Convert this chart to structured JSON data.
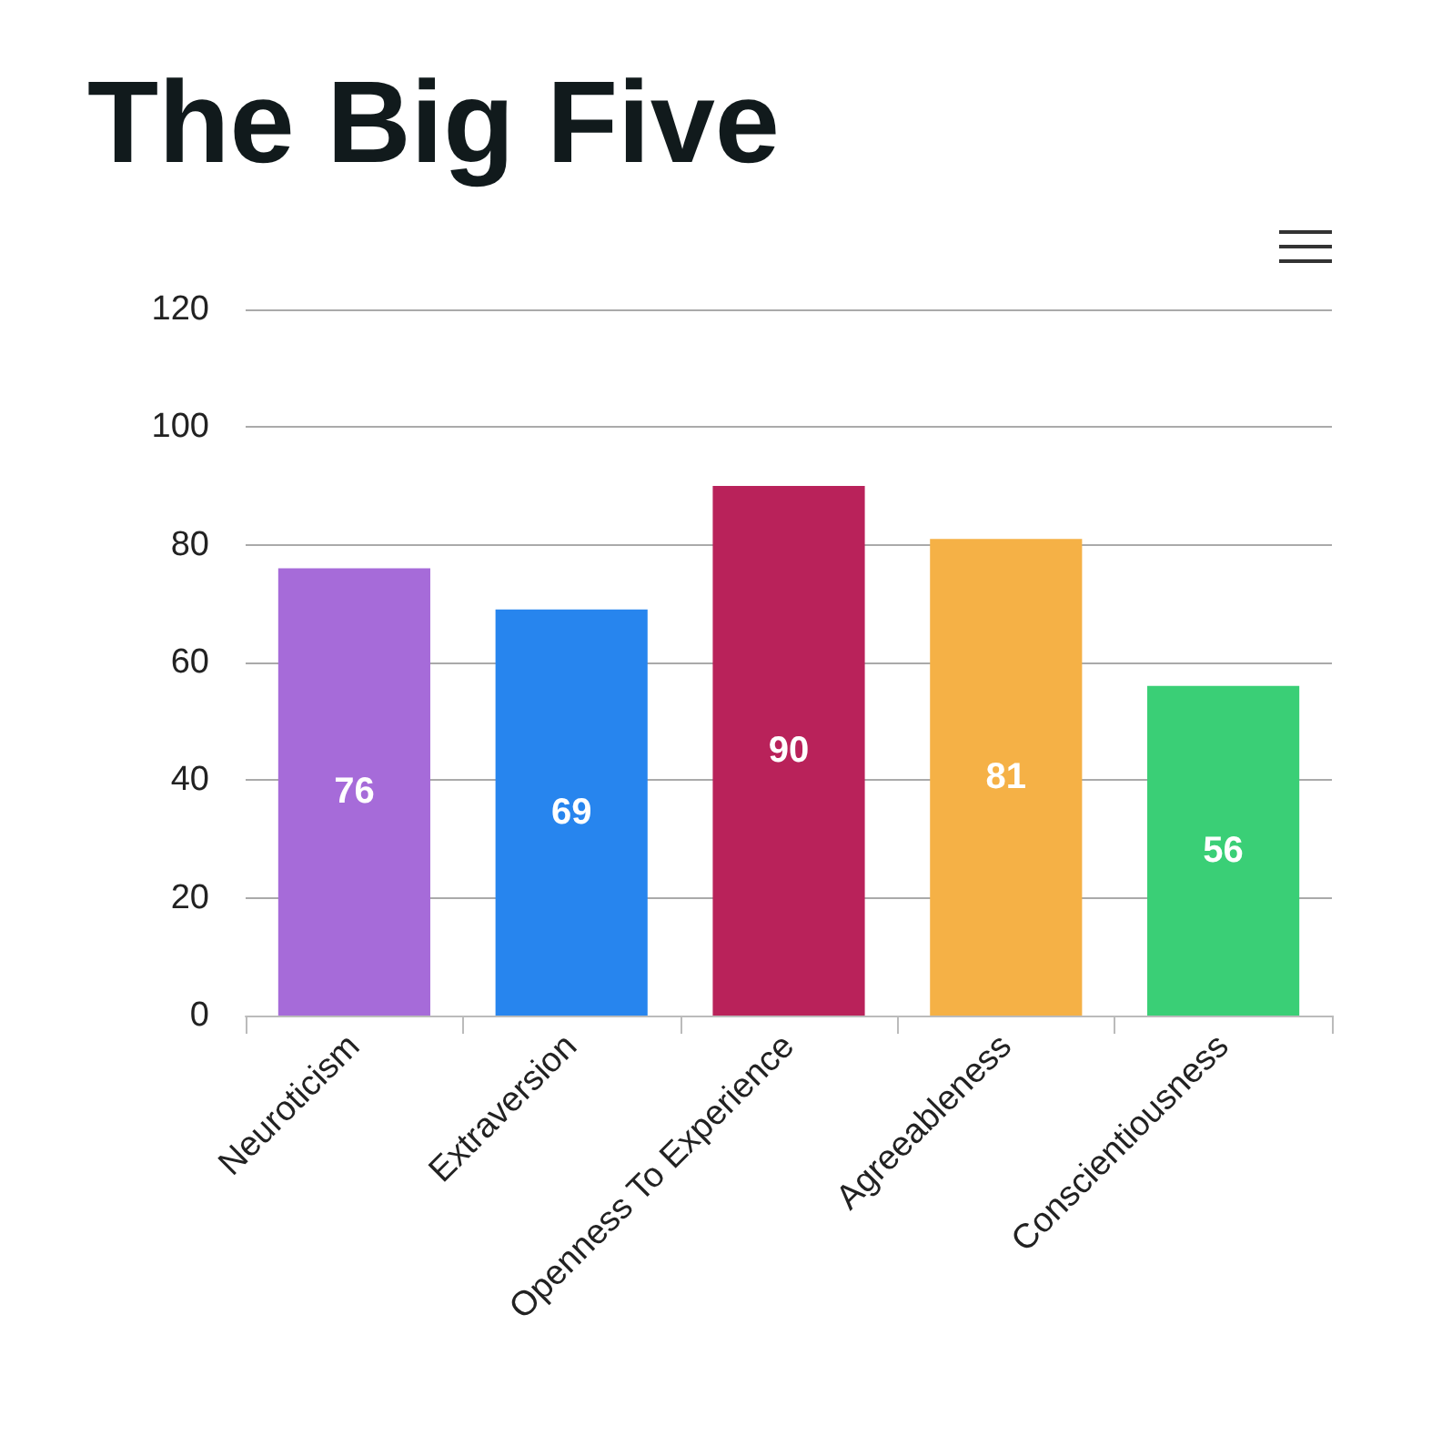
{
  "chart_data": {
    "type": "bar",
    "title": "The Big Five",
    "categories": [
      "Neuroticism",
      "Extraversion",
      "Openness To Experience",
      "Agreeableness",
      "Conscientiousness"
    ],
    "values": [
      76,
      69,
      90,
      81,
      56
    ],
    "colors": [
      "#a66bd9",
      "#2785ee",
      "#b9225a",
      "#f5b146",
      "#3acf76"
    ],
    "ylim": [
      0,
      120
    ],
    "yticks": [
      0,
      20,
      40,
      60,
      80,
      100,
      120
    ],
    "grid": "y",
    "data_labels": true
  }
}
